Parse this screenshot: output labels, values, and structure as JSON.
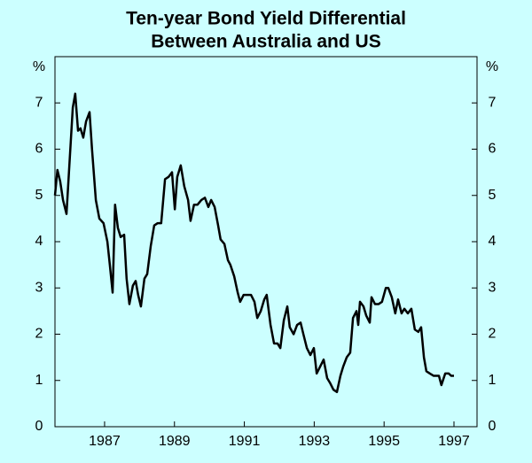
{
  "chart_data": {
    "type": "line",
    "title": [
      "Ten-year Bond Yield Differential",
      "Between Australia and US"
    ],
    "y_label": "%",
    "color": "#000000",
    "xlim": [
      1985.58,
      1997.66
    ],
    "xticks": [
      1987,
      1989,
      1991,
      1993,
      1995,
      1997
    ],
    "ylim": [
      0,
      8
    ],
    "yticks": [
      0,
      1,
      2,
      3,
      4,
      5,
      6,
      7
    ],
    "x": [
      1985.58,
      1985.65,
      1985.73,
      1985.81,
      1985.91,
      1985.98,
      1986.09,
      1986.16,
      1986.24,
      1986.31,
      1986.39,
      1986.47,
      1986.57,
      1986.64,
      1986.75,
      1986.85,
      1986.97,
      1987.08,
      1987.15,
      1987.23,
      1987.3,
      1987.38,
      1987.46,
      1987.56,
      1987.63,
      1987.71,
      1987.81,
      1987.89,
      1987.96,
      1988.04,
      1988.14,
      1988.22,
      1988.32,
      1988.42,
      1988.52,
      1988.62,
      1988.73,
      1988.83,
      1988.93,
      1989.01,
      1989.08,
      1989.18,
      1989.28,
      1989.39,
      1989.46,
      1989.56,
      1989.66,
      1989.77,
      1989.87,
      1989.97,
      1990.05,
      1990.15,
      1990.25,
      1990.32,
      1990.43,
      1990.53,
      1990.6,
      1990.71,
      1990.81,
      1990.88,
      1990.98,
      1991.09,
      1991.19,
      1991.29,
      1991.37,
      1991.47,
      1991.57,
      1991.64,
      1991.75,
      1991.85,
      1991.95,
      1992.03,
      1992.13,
      1992.23,
      1992.3,
      1992.41,
      1992.51,
      1992.61,
      1992.69,
      1992.79,
      1992.89,
      1992.99,
      1993.07,
      1993.17,
      1993.27,
      1993.37,
      1993.45,
      1993.55,
      1993.65,
      1993.75,
      1993.83,
      1993.93,
      1994.03,
      1994.11,
      1994.21,
      1994.26,
      1994.31,
      1994.41,
      1994.49,
      1994.59,
      1994.64,
      1994.74,
      1994.84,
      1994.94,
      1995.05,
      1995.12,
      1995.22,
      1995.32,
      1995.4,
      1995.5,
      1995.58,
      1995.68,
      1995.78,
      1995.88,
      1995.98,
      1996.06,
      1996.14,
      1996.21,
      1996.31,
      1996.42,
      1996.49,
      1996.57,
      1996.64,
      1996.75,
      1996.85,
      1996.92,
      1997.0
    ],
    "values": [
      5.0,
      5.55,
      5.3,
      4.9,
      4.6,
      5.5,
      6.9,
      7.2,
      6.4,
      6.45,
      6.25,
      6.6,
      6.8,
      6.0,
      4.9,
      4.5,
      4.4,
      4.0,
      3.5,
      2.9,
      4.8,
      4.3,
      4.1,
      4.15,
      3.2,
      2.65,
      3.05,
      3.15,
      2.85,
      2.6,
      3.2,
      3.3,
      3.9,
      4.35,
      4.4,
      4.4,
      5.35,
      5.4,
      5.5,
      4.7,
      5.4,
      5.65,
      5.2,
      4.9,
      4.45,
      4.8,
      4.8,
      4.9,
      4.95,
      4.75,
      4.9,
      4.75,
      4.35,
      4.05,
      3.95,
      3.6,
      3.5,
      3.25,
      2.9,
      2.7,
      2.85,
      2.85,
      2.85,
      2.7,
      2.35,
      2.5,
      2.75,
      2.85,
      2.2,
      1.8,
      1.8,
      1.7,
      2.3,
      2.6,
      2.15,
      2.0,
      2.2,
      2.25,
      2.0,
      1.7,
      1.55,
      1.7,
      1.15,
      1.3,
      1.45,
      1.05,
      0.95,
      0.8,
      0.75,
      1.1,
      1.3,
      1.5,
      1.6,
      2.35,
      2.5,
      2.2,
      2.7,
      2.6,
      2.4,
      2.25,
      2.8,
      2.65,
      2.65,
      2.7,
      3.0,
      3.0,
      2.8,
      2.45,
      2.75,
      2.45,
      2.55,
      2.45,
      2.55,
      2.1,
      2.05,
      2.15,
      1.5,
      1.2,
      1.15,
      1.1,
      1.1,
      1.1,
      0.9,
      1.15,
      1.15,
      1.1,
      1.1
    ]
  }
}
